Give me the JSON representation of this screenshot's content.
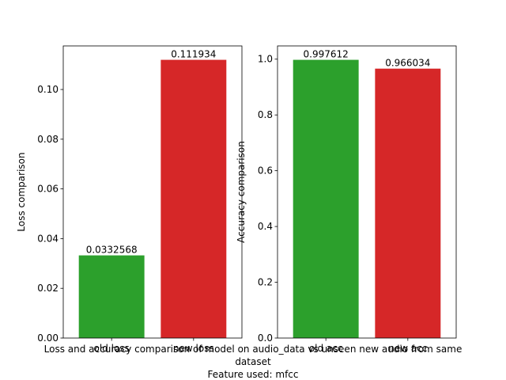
{
  "figure": {
    "caption_lines": [
      "Loss and accuracy comparison of model on audio_data vs unseen new audio from same",
      "dataset",
      "Feature used: mfcc"
    ]
  },
  "chart_data": [
    {
      "type": "bar",
      "categories": [
        "old loss",
        "new loss"
      ],
      "values": [
        0.0332568,
        0.111934
      ],
      "value_labels": [
        "0.0332568",
        "0.111934"
      ],
      "colors": [
        "#2ca02c",
        "#d62728"
      ],
      "ylabel": "Loss comparison",
      "ylim": [
        0,
        0.11753
      ],
      "yticks": [
        0.0,
        0.02,
        0.04,
        0.06,
        0.08,
        0.1
      ],
      "ytick_labels": [
        "0.00",
        "0.02",
        "0.04",
        "0.06",
        "0.08",
        "0.10"
      ],
      "grid": false
    },
    {
      "type": "bar",
      "categories": [
        "old acc",
        "new acc"
      ],
      "values": [
        0.997612,
        0.966034
      ],
      "value_labels": [
        "0.997612",
        "0.966034"
      ],
      "colors": [
        "#2ca02c",
        "#d62728"
      ],
      "ylabel": "Accuracy comparison",
      "ylim": [
        0,
        1.0475
      ],
      "yticks": [
        0.0,
        0.2,
        0.4,
        0.6,
        0.8,
        1.0
      ],
      "ytick_labels": [
        "0.0",
        "0.2",
        "0.4",
        "0.6",
        "0.8",
        "1.0"
      ],
      "grid": false
    }
  ]
}
